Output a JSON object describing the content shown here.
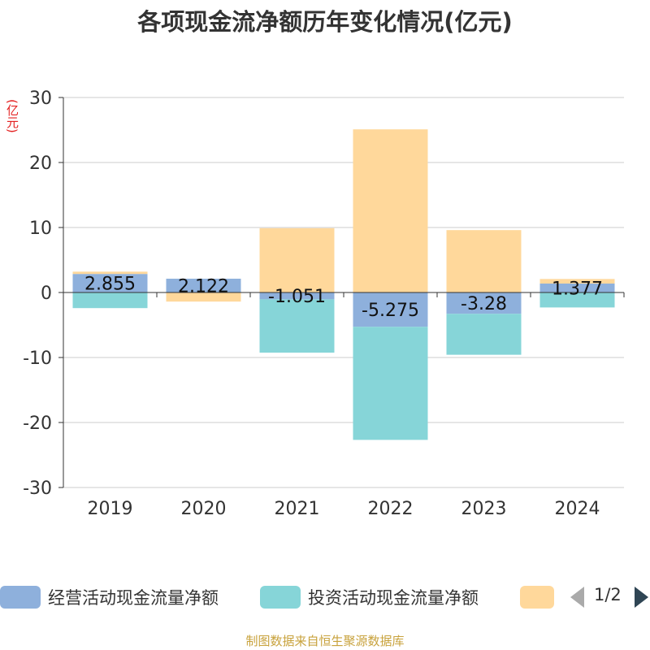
{
  "title": "各项现金流净额历年变化情况(亿元)",
  "unit_label": "(亿元)",
  "source": "制图数据来自恒生聚源数据库",
  "legend": {
    "items": [
      {
        "name": "经营活动现金流量净额",
        "color": "#8eb0dc"
      },
      {
        "name": "投资活动现金流量净额",
        "color": "#86d5d8"
      },
      {
        "name": "",
        "color": "#ffd89b"
      }
    ],
    "page": "1/2"
  },
  "chart_data": {
    "type": "bar",
    "stacked": true,
    "categories": [
      "2019",
      "2020",
      "2021",
      "2022",
      "2023",
      "2024"
    ],
    "ylim": [
      -30,
      30
    ],
    "yticks": [
      30,
      20,
      10,
      0,
      -10,
      -20,
      -30
    ],
    "grid": true,
    "legend_position": "bottom",
    "series": [
      {
        "name": "经营活动现金流量净额",
        "color": "#8eb0dc",
        "values": [
          2.855,
          2.122,
          -1.051,
          -5.275,
          -3.28,
          1.377
        ],
        "labels": [
          "2.855",
          "2.122",
          "-1.051",
          "-5.275",
          "-3.28",
          "1.377"
        ]
      },
      {
        "name": "投资活动现金流量净额",
        "color": "#86d5d8",
        "values": [
          -2.4,
          0,
          -8.2,
          -17.4,
          -6.3,
          -2.3
        ]
      },
      {
        "color": "#ffd89b",
        "values": [
          0.35,
          -1.4,
          9.9,
          25.1,
          9.6,
          0.7
        ]
      }
    ]
  }
}
